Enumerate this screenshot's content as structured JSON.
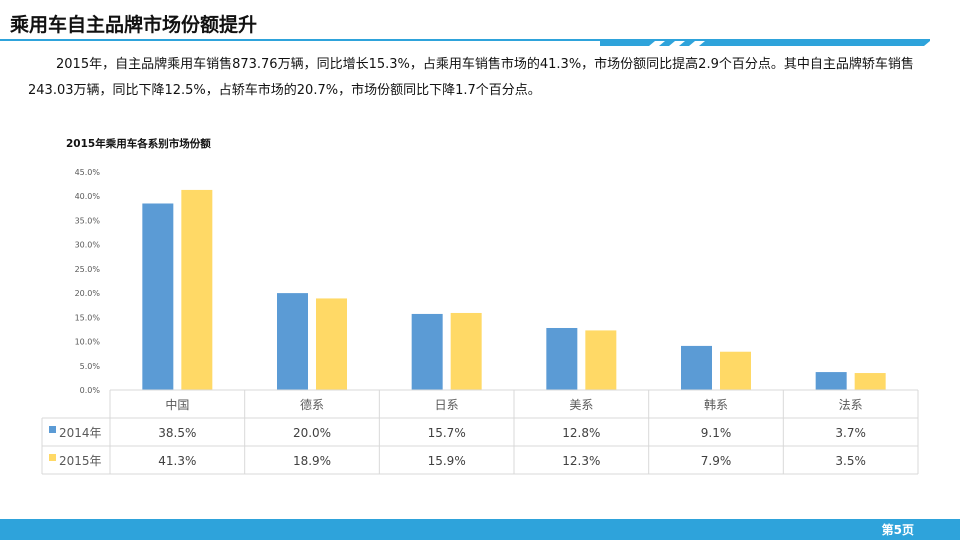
{
  "slide": {
    "title": "乘用车自主品牌市场份额提升",
    "paragraph": "2015年，自主品牌乘用车销售873.76万辆，同比增长15.3%，占乘用车销售市场的41.3%，市场份额同比提高2.9个百分点。其中自主品牌轿车销售243.03万辆，同比下降12.5%，占轿车市场的20.7%，市场份额同比下降1.7个百分点。",
    "page_number": "第5页"
  },
  "colors": {
    "accent": "#2ea3db",
    "series_2014": "#5b9bd5",
    "series_2015": "#ffd966",
    "grid": "#d9d9d9"
  },
  "chart_data": {
    "type": "bar",
    "title": "2015年乘用车各系别市场份额",
    "categories": [
      "中国",
      "德系",
      "日系",
      "美系",
      "韩系",
      "法系"
    ],
    "series": [
      {
        "name": "2014年",
        "values": [
          38.5,
          20.0,
          15.7,
          12.8,
          9.1,
          3.7
        ],
        "labels": [
          "38.5%",
          "20.0%",
          "15.7%",
          "12.8%",
          "9.1%",
          "3.7%"
        ]
      },
      {
        "name": "2015年",
        "values": [
          41.3,
          18.9,
          15.9,
          12.3,
          7.9,
          3.5
        ],
        "labels": [
          "41.3%",
          "18.9%",
          "15.9%",
          "12.3%",
          "7.9%",
          "3.5%"
        ]
      }
    ],
    "yticks": [
      "0.0%",
      "5.0%",
      "10.0%",
      "15.0%",
      "20.0%",
      "25.0%",
      "30.0%",
      "35.0%",
      "40.0%",
      "45.0%"
    ],
    "ylim": [
      0,
      45
    ],
    "ytick_step": 5,
    "data_table": true
  }
}
